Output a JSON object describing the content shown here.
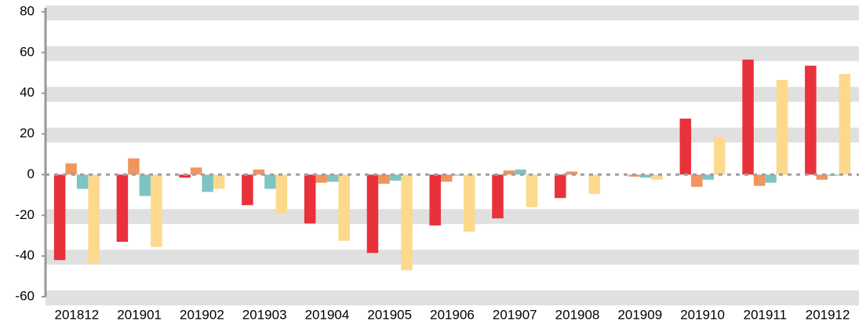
{
  "chart_data": {
    "type": "bar",
    "categories": [
      "201812",
      "201901",
      "201902",
      "201903",
      "201904",
      "201905",
      "201906",
      "201907",
      "201908",
      "201909",
      "201910",
      "201911",
      "201912"
    ],
    "series": [
      {
        "color": "#e8313a",
        "values": [
          -42,
          -33,
          -1.5,
          -15,
          -24,
          -38.5,
          -25,
          -21.5,
          -11.5,
          0,
          27.5,
          56.5,
          53.5
        ]
      },
      {
        "color": "#f0955e",
        "values": [
          5.5,
          8,
          3.5,
          2.5,
          -4,
          -4.5,
          -3.5,
          2,
          1.5,
          -1,
          -6,
          -5.5,
          -2.5
        ]
      },
      {
        "color": "#7fc4c4",
        "values": [
          -7,
          -10.5,
          -8.5,
          -7,
          -3.5,
          -3,
          -0.5,
          2.5,
          0,
          -1.5,
          -2.5,
          -4,
          -0.5
        ]
      },
      {
        "color": "#fdd98c",
        "values": [
          -43.5,
          -35.5,
          -7,
          -19,
          -32.5,
          -47,
          -28,
          -16,
          -9.5,
          -2.5,
          18.5,
          46.5,
          49.5
        ]
      }
    ],
    "ylim": [
      -60,
      80
    ],
    "yticks": [
      -60,
      -40,
      -20,
      0,
      20,
      40,
      60,
      80
    ],
    "grid": true
  }
}
